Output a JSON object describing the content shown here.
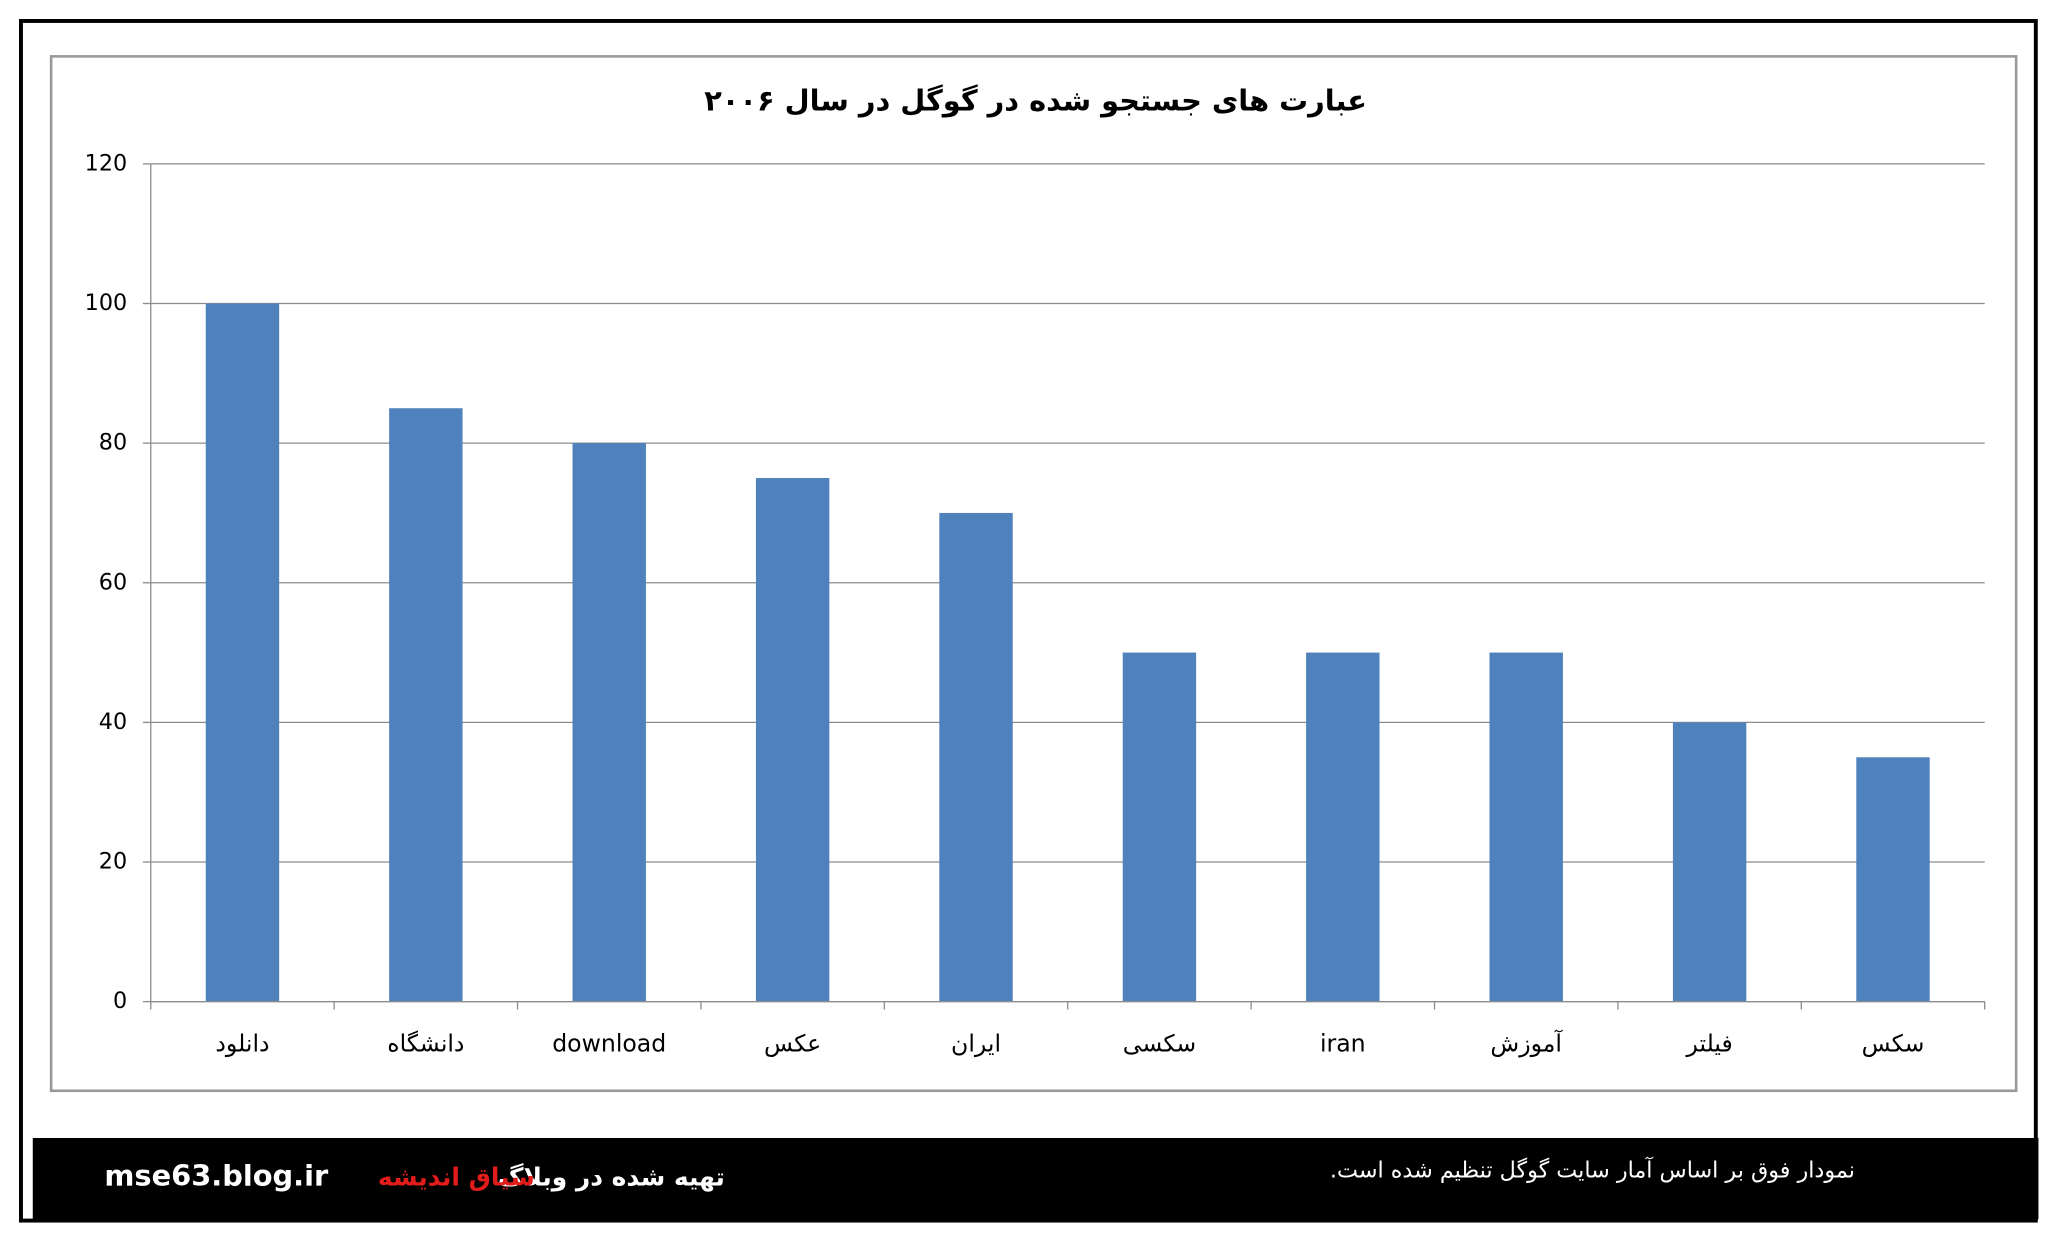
{
  "chart_data": {
    "type": "bar",
    "title": "عبارت های جستجو شده در گوگل در سال ۲۰۰۶",
    "categories": [
      "دانلود",
      "دانشگاه",
      "download",
      "عکس",
      "ایران",
      "سکسی",
      "iran",
      "آموزش",
      "فیلتر",
      "سکس"
    ],
    "values": [
      100,
      85,
      80,
      75,
      70,
      50,
      50,
      50,
      40,
      35
    ],
    "color": "#4f81bd",
    "ylim": [
      0,
      120
    ],
    "yticks": [
      0,
      20,
      40,
      60,
      80,
      100,
      120
    ],
    "grid": true
  },
  "footer": {
    "site": "mse63.blog.ir",
    "made_in": "تهیه شده در وبلاگ",
    "blog_name": "سیاق اندیشه",
    "note": "نمودار فوق بر اساس آمار سایت گوگل تنظیم شده است."
  }
}
